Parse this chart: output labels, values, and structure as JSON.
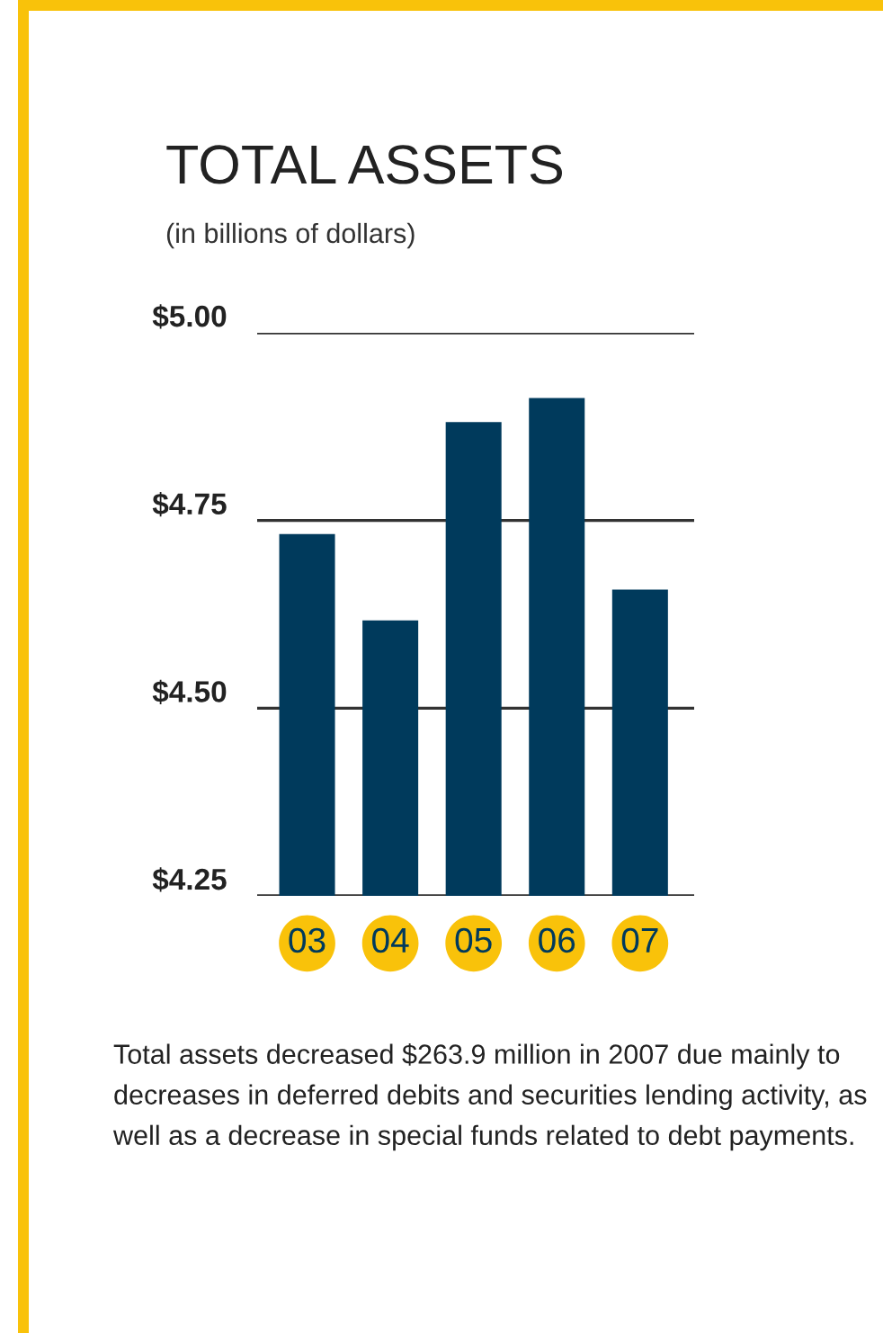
{
  "chart_data": {
    "type": "bar",
    "title": "TOTAL ASSETS",
    "subtitle": "(in billions of dollars)",
    "categories": [
      "03",
      "04",
      "05",
      "06",
      "07"
    ],
    "values": [
      4.732,
      4.617,
      4.881,
      4.913,
      4.658
    ],
    "color": "#003a5c",
    "ylim": [
      4.25,
      5.0
    ],
    "yticks": [
      {
        "value": 4.25,
        "label": "$4.25"
      },
      {
        "value": 4.5,
        "label": "$4.50"
      },
      {
        "value": 4.75,
        "label": "$4.75"
      },
      {
        "value": 5.0,
        "label": "$5.00"
      }
    ],
    "grid": "y",
    "annotations": [
      "Total assets decreased $263.9 million in 2007 due mainly to decreases in deferred debits and securities lending activity, as well as a decrease in special funds related to debt payments."
    ]
  }
}
